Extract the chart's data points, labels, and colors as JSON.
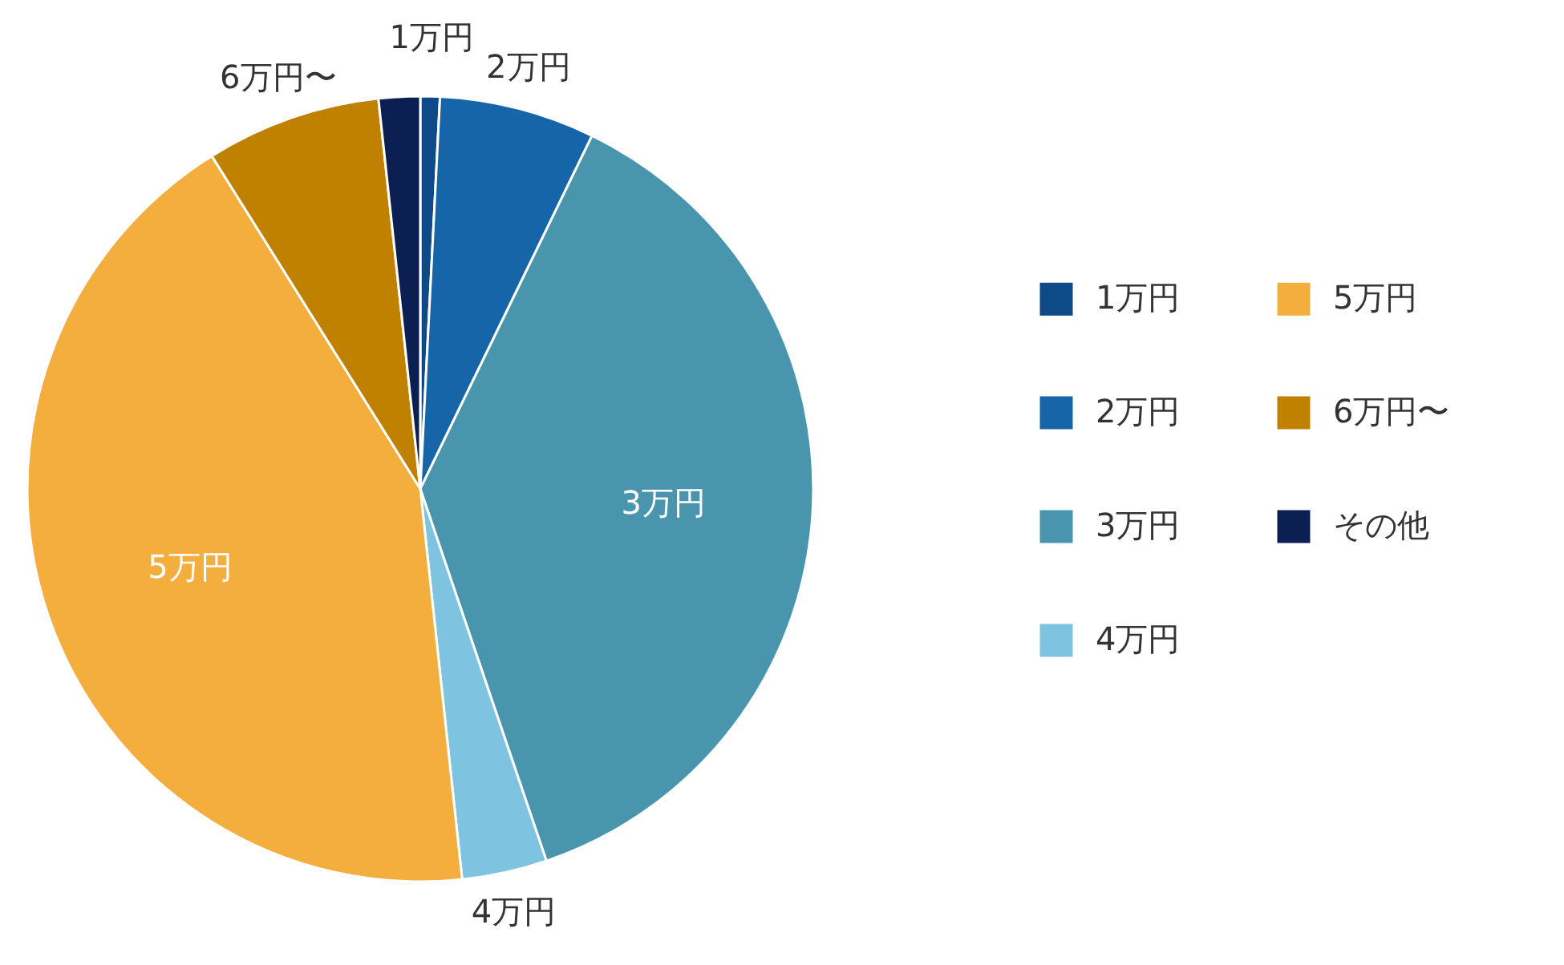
{
  "chart_data": {
    "type": "pie",
    "categories": [
      "1万円",
      "2万円",
      "3万円",
      "4万円",
      "5万円",
      "6万円〜",
      "その他"
    ],
    "values": [
      0.8,
      6.4,
      37.6,
      3.5,
      42.8,
      7.2,
      1.7
    ],
    "colors": [
      "#0d4a87",
      "#1565a8",
      "#4a95ae",
      "#7ec4e0",
      "#f4ae3d",
      "#c08000",
      "#0b1f52"
    ],
    "legend": "right",
    "annotations": [
      {
        "text": "1万円",
        "x": "1万円"
      },
      {
        "text": "2万円",
        "x": "2万円"
      },
      {
        "text": "3万円",
        "x": "3万円"
      },
      {
        "text": "4万円",
        "x": "4万円"
      },
      {
        "text": "5万円",
        "x": "5万円"
      },
      {
        "text": "6万円〜",
        "x": "6万円〜"
      }
    ]
  }
}
